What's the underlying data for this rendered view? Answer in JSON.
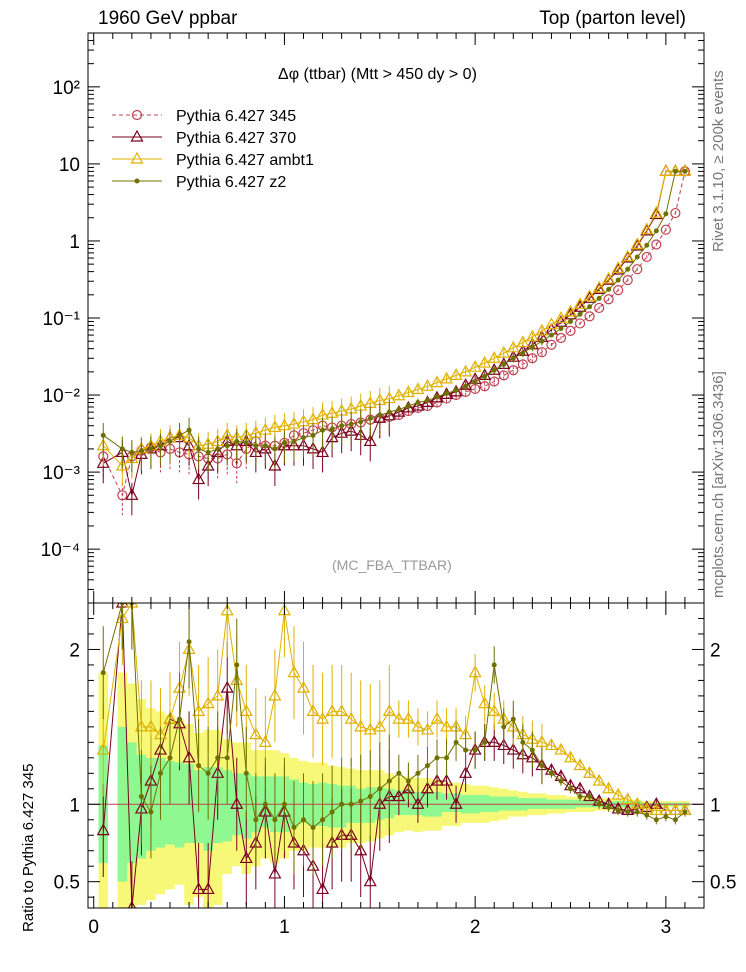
{
  "header": {
    "left": "1960 GeV ppbar",
    "right": "Top (parton level)",
    "side_rivet": "Rivet 3.1.10, ≥ 200k events",
    "side_mcplots": "mcplots.cern.ch [arXiv:1306.3436]"
  },
  "colors": {
    "p345": "#c04050",
    "p370": "#7a0020",
    "ambt1": "#e0b000",
    "z2": "#707000",
    "band_inner": "#90f890",
    "band_outer": "#f8f878"
  },
  "chart_data": [
    {
      "type": "line",
      "title": "Δφ (ttbar) (Mtt > 450 dy > 0)",
      "annotation": "(MC_FBA_TTBAR)",
      "yscale": "log",
      "xlim": [
        -0.03,
        3.2
      ],
      "ylim": [
        2e-05,
        500
      ],
      "y_tick_labels": [
        "10⁻⁴",
        "10⁻³",
        "10⁻²",
        "10⁻¹",
        "1",
        "10",
        "10²"
      ],
      "legend_position": "top-left",
      "x": [
        0.05,
        0.15,
        0.2,
        0.25,
        0.3,
        0.35,
        0.4,
        0.45,
        0.5,
        0.55,
        0.6,
        0.65,
        0.7,
        0.75,
        0.8,
        0.85,
        0.9,
        0.95,
        1.0,
        1.05,
        1.1,
        1.15,
        1.2,
        1.25,
        1.3,
        1.35,
        1.4,
        1.45,
        1.5,
        1.55,
        1.6,
        1.65,
        1.7,
        1.75,
        1.8,
        1.85,
        1.9,
        1.95,
        2.0,
        2.05,
        2.1,
        2.15,
        2.2,
        2.25,
        2.3,
        2.35,
        2.4,
        2.45,
        2.5,
        2.55,
        2.6,
        2.65,
        2.7,
        2.75,
        2.8,
        2.85,
        2.9,
        2.95,
        3.0,
        3.05,
        3.1
      ],
      "series": [
        {
          "name": "Pythia 6.427 345",
          "style": "dashed-circle",
          "values": [
            0.0016,
            0.0005,
            0.0016,
            0.0019,
            0.0021,
            0.0018,
            0.002,
            0.0018,
            0.0017,
            0.0016,
            0.0015,
            0.0015,
            0.0017,
            0.0013,
            0.002,
            0.0025,
            0.0022,
            0.0022,
            0.0024,
            0.003,
            0.0032,
            0.0035,
            0.004,
            0.0038,
            0.004,
            0.0042,
            0.0044,
            0.0048,
            0.005,
            0.0052,
            0.0055,
            0.0062,
            0.0068,
            0.0072,
            0.008,
            0.009,
            0.01,
            0.011,
            0.012,
            0.013,
            0.015,
            0.018,
            0.021,
            0.025,
            0.03,
            0.036,
            0.045,
            0.055,
            0.068,
            0.085,
            0.105,
            0.135,
            0.175,
            0.23,
            0.31,
            0.43,
            0.62,
            0.9,
            1.4,
            2.3,
            8.0
          ]
        },
        {
          "name": "Pythia 6.427 370",
          "style": "solid-triangle",
          "values": [
            0.0013,
            0.0018,
            0.0005,
            0.0017,
            0.002,
            0.0022,
            0.0028,
            0.0028,
            0.0022,
            0.0008,
            0.0012,
            0.0018,
            0.0025,
            0.0022,
            0.0025,
            0.0018,
            0.002,
            0.0012,
            0.0022,
            0.0022,
            0.0022,
            0.002,
            0.0018,
            0.0028,
            0.0032,
            0.0034,
            0.003,
            0.0025,
            0.005,
            0.0054,
            0.006,
            0.0068,
            0.0072,
            0.008,
            0.0092,
            0.0102,
            0.011,
            0.0134,
            0.016,
            0.018,
            0.021,
            0.025,
            0.031,
            0.037,
            0.045,
            0.056,
            0.07,
            0.088,
            0.11,
            0.138,
            0.18,
            0.235,
            0.31,
            0.42,
            0.6,
            0.86,
            1.35,
            2.2,
            8.0,
            8.0,
            8.0
          ]
        },
        {
          "name": "Pythia 6.427 ambt1",
          "style": "solid-triangle",
          "values": [
            0.0022,
            0.0012,
            0.0015,
            0.002,
            0.0022,
            0.0025,
            0.0028,
            0.003,
            0.0028,
            0.0022,
            0.0023,
            0.0025,
            0.003,
            0.0028,
            0.003,
            0.0032,
            0.0035,
            0.0038,
            0.004,
            0.0042,
            0.0045,
            0.0048,
            0.0055,
            0.0058,
            0.0062,
            0.0066,
            0.0072,
            0.0078,
            0.0085,
            0.009,
            0.0098,
            0.0108,
            0.0118,
            0.013,
            0.0145,
            0.0162,
            0.018,
            0.02,
            0.023,
            0.026,
            0.03,
            0.035,
            0.041,
            0.048,
            0.057,
            0.068,
            0.082,
            0.099,
            0.12,
            0.15,
            0.19,
            0.245,
            0.32,
            0.44,
            0.62,
            0.9,
            1.4,
            2.3,
            8.0,
            8.0,
            8.0
          ]
        },
        {
          "name": "Pythia 6.427 z2",
          "style": "solid-dot",
          "values": [
            0.003,
            0.002,
            0.0018,
            0.0019,
            0.002,
            0.0022,
            0.0025,
            0.003,
            0.0035,
            0.002,
            0.0018,
            0.002,
            0.0022,
            0.0025,
            0.0024,
            0.0022,
            0.0022,
            0.002,
            0.0024,
            0.0025,
            0.0028,
            0.003,
            0.0035,
            0.0036,
            0.004,
            0.0042,
            0.0045,
            0.005,
            0.0055,
            0.006,
            0.0065,
            0.0072,
            0.008,
            0.0085,
            0.0095,
            0.0105,
            0.0115,
            0.013,
            0.015,
            0.0175,
            0.021,
            0.025,
            0.03,
            0.035,
            0.042,
            0.05,
            0.06,
            0.073,
            0.09,
            0.112,
            0.14,
            0.18,
            0.235,
            0.31,
            0.43,
            0.62,
            0.88,
            1.35,
            2.25,
            8.0,
            8.0
          ]
        }
      ]
    },
    {
      "type": "line",
      "ylabel": "Ratio to Pythia 6.427 345",
      "xlim": [
        -0.03,
        3.2
      ],
      "ylim": [
        0.33,
        2.3
      ],
      "x_tick_labels": [
        "0",
        "1",
        "2",
        "3"
      ],
      "y_tick_labels": [
        "0.5",
        "1",
        "2"
      ],
      "x": [
        0.05,
        0.15,
        0.2,
        0.25,
        0.3,
        0.35,
        0.4,
        0.45,
        0.5,
        0.55,
        0.6,
        0.65,
        0.7,
        0.75,
        0.8,
        0.85,
        0.9,
        0.95,
        1.0,
        1.05,
        1.1,
        1.15,
        1.2,
        1.25,
        1.3,
        1.35,
        1.4,
        1.45,
        1.5,
        1.55,
        1.6,
        1.65,
        1.7,
        1.75,
        1.8,
        1.85,
        1.9,
        1.95,
        2.0,
        2.05,
        2.1,
        2.15,
        2.2,
        2.25,
        2.3,
        2.35,
        2.4,
        2.45,
        2.5,
        2.55,
        2.6,
        2.65,
        2.7,
        2.75,
        2.8,
        2.85,
        2.9,
        2.95,
        3.0,
        3.05,
        3.1
      ],
      "bands": {
        "inner_low": [
          0.62,
          0.5,
          0.62,
          0.65,
          0.7,
          0.72,
          0.74,
          0.72,
          0.75,
          0.75,
          0.7,
          0.75,
          0.76,
          0.8,
          0.78,
          0.82,
          0.85,
          0.82,
          0.82,
          0.85,
          0.88,
          0.86,
          0.86,
          0.85,
          0.85,
          0.88,
          0.88,
          0.88,
          0.9,
          0.91,
          0.93,
          0.93,
          0.93,
          0.92,
          0.92,
          0.95,
          0.95,
          0.94,
          0.94,
          0.95,
          0.95,
          0.96,
          0.96,
          0.96,
          0.97,
          0.97,
          0.97,
          0.97,
          0.97,
          0.98,
          0.98,
          0.98,
          0.98,
          0.98,
          0.98,
          0.99,
          0.99,
          0.99,
          0.99,
          0.99,
          0.99
        ],
        "inner_high": [
          1.38,
          1.5,
          1.4,
          1.32,
          1.3,
          1.3,
          1.28,
          1.27,
          1.26,
          1.22,
          1.24,
          1.24,
          1.22,
          1.2,
          1.2,
          1.18,
          1.18,
          1.18,
          1.18,
          1.16,
          1.14,
          1.13,
          1.14,
          1.13,
          1.12,
          1.12,
          1.1,
          1.11,
          1.11,
          1.1,
          1.09,
          1.09,
          1.08,
          1.08,
          1.08,
          1.07,
          1.07,
          1.06,
          1.06,
          1.06,
          1.05,
          1.05,
          1.05,
          1.04,
          1.04,
          1.04,
          1.03,
          1.03,
          1.03,
          1.03,
          1.02,
          1.02,
          1.02,
          1.02,
          1.02,
          1.02,
          1.01,
          1.01,
          1.01,
          1.01,
          1.01
        ],
        "outer_low": [
          0.33,
          0.33,
          0.33,
          0.35,
          0.38,
          0.42,
          0.45,
          0.48,
          0.35,
          0.4,
          0.33,
          0.35,
          0.55,
          0.6,
          0.55,
          0.6,
          0.65,
          0.62,
          0.65,
          0.7,
          0.7,
          0.72,
          0.72,
          0.72,
          0.72,
          0.75,
          0.75,
          0.76,
          0.78,
          0.8,
          0.82,
          0.83,
          0.82,
          0.83,
          0.83,
          0.86,
          0.86,
          0.88,
          0.88,
          0.88,
          0.89,
          0.9,
          0.92,
          0.92,
          0.93,
          0.93,
          0.94,
          0.94,
          0.95,
          0.95,
          0.95,
          0.96,
          0.96,
          0.96,
          0.97,
          0.97,
          0.97,
          0.98,
          0.98,
          0.98,
          0.98
        ],
        "outer_high": [
          1.85,
          1.85,
          1.78,
          1.68,
          1.62,
          1.6,
          1.58,
          1.55,
          1.52,
          1.46,
          1.48,
          1.48,
          1.42,
          1.4,
          1.4,
          1.35,
          1.35,
          1.35,
          1.33,
          1.3,
          1.28,
          1.27,
          1.27,
          1.25,
          1.24,
          1.23,
          1.22,
          1.22,
          1.22,
          1.2,
          1.18,
          1.18,
          1.17,
          1.17,
          1.16,
          1.14,
          1.14,
          1.13,
          1.12,
          1.12,
          1.11,
          1.1,
          1.09,
          1.08,
          1.07,
          1.07,
          1.06,
          1.06,
          1.05,
          1.05,
          1.04,
          1.04,
          1.04,
          1.03,
          1.03,
          1.03,
          1.02,
          1.02,
          1.02,
          1.02,
          1.02
        ]
      },
      "series": [
        {
          "name": "Pythia 6.427 370",
          "style": "solid-triangle",
          "values": [
            0.83,
            2.3,
            0.33,
            0.97,
            1.15,
            1.35,
            1.55,
            1.52,
            1.3,
            0.45,
            0.45,
            1.2,
            1.75,
            1.0,
            0.65,
            0.75,
            0.95,
            0.55,
            0.95,
            0.75,
            0.7,
            0.6,
            0.45,
            0.75,
            0.8,
            0.8,
            0.7,
            0.5,
            1.0,
            1.05,
            1.05,
            1.1,
            1.0,
            1.1,
            1.15,
            1.15,
            1.0,
            1.2,
            1.35,
            1.4,
            1.4,
            1.38,
            1.35,
            1.32,
            1.3,
            1.25,
            1.22,
            1.18,
            1.12,
            1.1,
            1.05,
            1.02,
            1.0,
            0.97,
            0.96,
            0.97,
            0.98,
            1.0,
            0.96,
            0.96,
            0.96
          ]
        },
        {
          "name": "Pythia 6.427 ambt1",
          "style": "solid-triangle",
          "values": [
            1.35,
            2.2,
            2.3,
            1.5,
            1.5,
            1.45,
            1.55,
            1.75,
            2.0,
            1.6,
            1.65,
            1.7,
            2.25,
            1.8,
            1.6,
            1.45,
            1.4,
            1.7,
            2.25,
            1.85,
            1.75,
            1.6,
            1.55,
            1.6,
            1.6,
            1.55,
            1.5,
            1.48,
            1.5,
            1.6,
            1.55,
            1.55,
            1.5,
            1.48,
            1.55,
            1.5,
            1.5,
            1.45,
            1.85,
            1.65,
            1.6,
            1.55,
            1.5,
            1.45,
            1.42,
            1.4,
            1.38,
            1.35,
            1.3,
            1.25,
            1.2,
            1.15,
            1.1,
            1.06,
            1.03,
            1.0,
            0.97,
            0.96,
            0.96,
            0.96,
            0.96
          ]
        },
        {
          "name": "Pythia 6.427 z2",
          "style": "solid-dot",
          "values": [
            1.85,
            2.3,
            2.3,
            1.05,
            0.95,
            1.2,
            1.3,
            1.55,
            2.05,
            1.25,
            1.2,
            1.3,
            1.3,
            1.9,
            1.2,
            0.9,
            1.0,
            0.9,
            1.0,
            0.85,
            0.9,
            0.85,
            0.9,
            0.95,
            1.0,
            1.0,
            1.02,
            1.05,
            1.1,
            1.15,
            1.2,
            1.15,
            1.2,
            1.25,
            1.3,
            1.3,
            1.4,
            1.35,
            1.35,
            1.4,
            1.9,
            1.5,
            1.55,
            1.4,
            1.35,
            1.25,
            1.2,
            1.15,
            1.1,
            1.05,
            1.05,
            1.0,
            0.98,
            0.96,
            0.95,
            0.95,
            0.93,
            0.9,
            0.92,
            0.9,
            0.95
          ]
        }
      ]
    }
  ]
}
